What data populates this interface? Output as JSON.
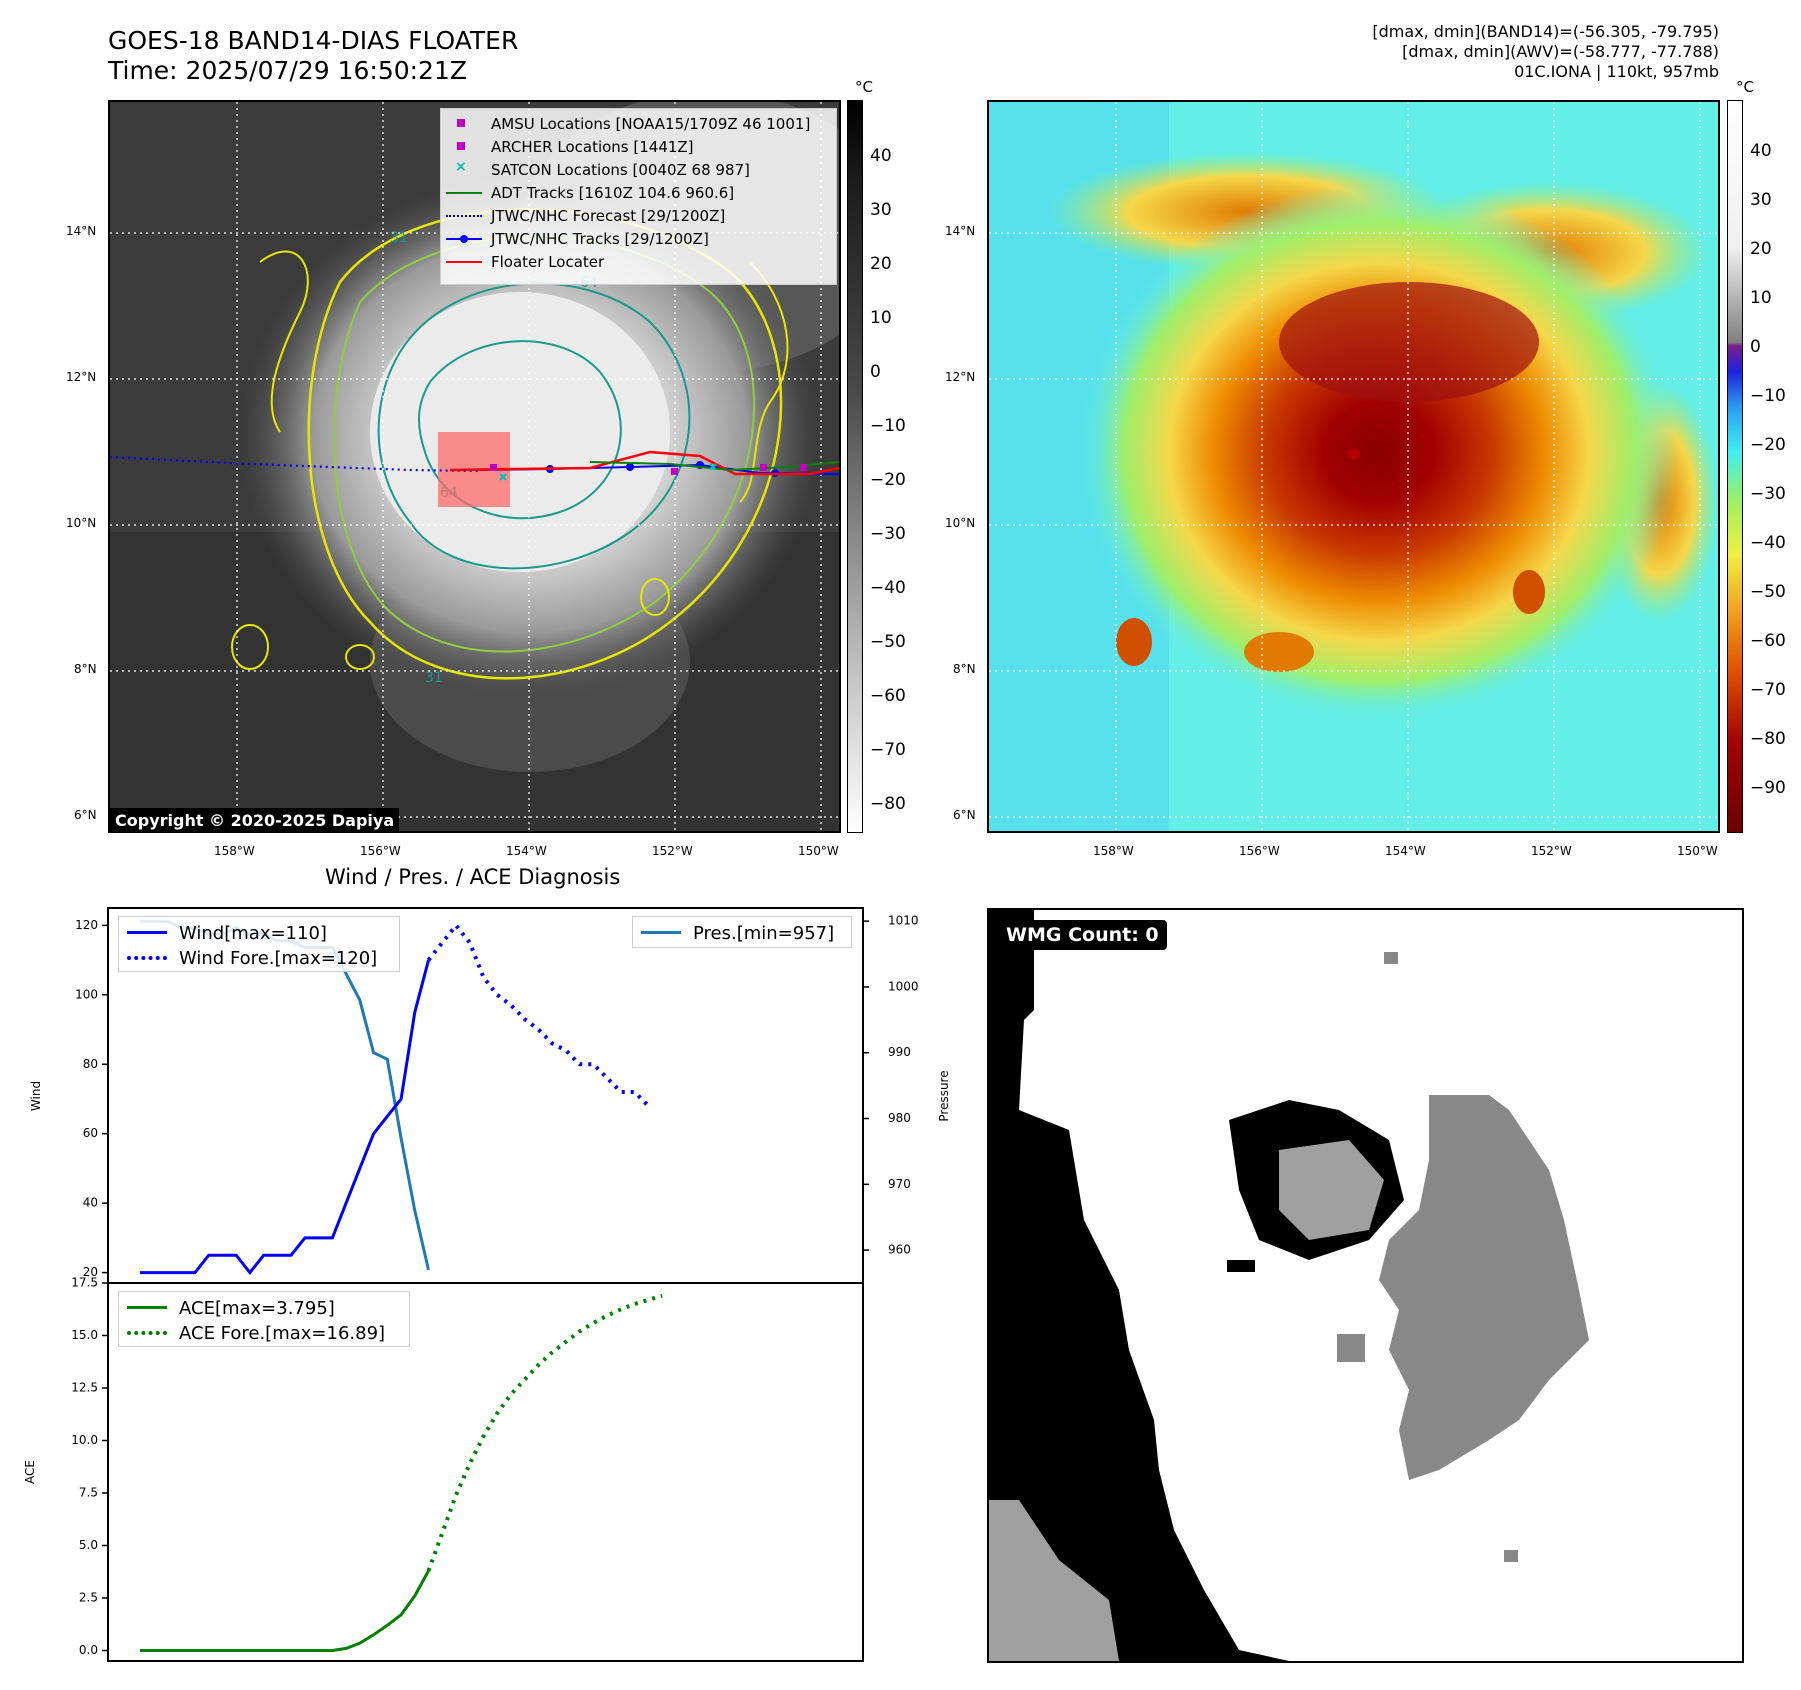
{
  "header": {
    "title_line1": "GOES-18 BAND14-DIAS FLOATER",
    "title_line2": "Time: 2025/07/29 16:50:21Z",
    "info_line1": "[dmax, dmin](BAND14)=(-56.305, -79.795)",
    "info_line2": "[dmax, dmin](AWV)=(-58.777, -77.788)",
    "info_line3": "01C.IONA | 110kt, 957mb"
  },
  "map_left": {
    "colorbar_unit": "°C",
    "colorbar_ticks": [
      "40",
      "30",
      "20",
      "10",
      "0",
      "−10",
      "−20",
      "−30",
      "−40",
      "−50",
      "−60",
      "−70",
      "−80"
    ],
    "lat_labels": [
      "14°N",
      "12°N",
      "10°N",
      "8°N",
      "6°N"
    ],
    "lon_labels": [
      "158°W",
      "156°W",
      "154°W",
      "152°W",
      "150°W"
    ],
    "copyright": "Copyright © 2020-2025 Dapiya",
    "contour_labels": [
      "31",
      "64",
      "64",
      "31"
    ],
    "legend": [
      {
        "label": "AMSU Locations [NOAA15/1709Z 46 1001]",
        "color": "#bf00bf",
        "marker": "square"
      },
      {
        "label": "ARCHER Locations [1441Z]",
        "color": "#bf00bf",
        "marker": "square"
      },
      {
        "label": "SATCON Locations [0040Z 68 987]",
        "color": "#00bfbf",
        "marker": "x"
      },
      {
        "label": "ADT Tracks [1610Z 104.6 960.6]",
        "color": "#008000",
        "marker": "line"
      },
      {
        "label": "JTWC/NHC Forecast [29/1200Z]",
        "color": "#0000ff",
        "marker": "dotted"
      },
      {
        "label": "JTWC/NHC Tracks [29/1200Z]",
        "color": "#0000ff",
        "marker": "line-dot"
      },
      {
        "label": "Floater Locater",
        "color": "#ff0000",
        "marker": "line"
      }
    ]
  },
  "map_right": {
    "colorbar_unit": "°C",
    "colorbar_ticks": [
      "40",
      "30",
      "20",
      "10",
      "0",
      "−10",
      "−20",
      "−30",
      "−40",
      "−50",
      "−60",
      "−70",
      "−80",
      "−90"
    ],
    "lat_labels": [
      "14°N",
      "12°N",
      "10°N",
      "8°N",
      "6°N"
    ],
    "lon_labels": [
      "158°W",
      "156°W",
      "154°W",
      "152°W",
      "150°W"
    ]
  },
  "diag": {
    "title": "Wind / Pres. / ACE Diagnosis",
    "wind_ylabel": "Wind",
    "pres_ylabel": "Pressure",
    "ace_ylabel": "ACE",
    "wind_ticks": [
      "120",
      "100",
      "80",
      "60",
      "40",
      "20"
    ],
    "pres_ticks": [
      "1010",
      "1000",
      "990",
      "980",
      "970",
      "960"
    ],
    "ace_ticks": [
      "17.5",
      "15.0",
      "12.5",
      "10.0",
      "7.5",
      "5.0",
      "2.5",
      "0.0"
    ],
    "legend_wind": "Wind[max=110]",
    "legend_wind_fore": "Wind Fore.[max=120]",
    "legend_pres": "Pres.[min=957]",
    "legend_ace": "ACE[max=3.795]",
    "legend_ace_fore": "ACE Fore.[max=16.89]"
  },
  "wmg": {
    "label": "WMG Count: 0"
  },
  "chart_data": [
    {
      "type": "line",
      "title": "Wind / Pres. / ACE Diagnosis",
      "ylabel": "Wind",
      "ylim": [
        17,
        125
      ],
      "x": [
        0,
        1,
        2,
        3,
        4,
        5,
        6,
        7,
        8,
        9,
        10,
        11,
        12,
        13,
        14,
        15,
        16,
        17,
        18,
        19,
        20,
        21,
        22,
        23,
        24,
        25,
        26,
        27,
        28,
        29,
        30,
        31,
        32,
        33,
        34,
        35,
        36,
        37,
        38,
        39,
        40,
        41,
        42,
        43,
        44,
        45,
        46,
        47,
        48,
        49,
        50
      ],
      "series": [
        {
          "name": "Wind[max=110]",
          "values": [
            20,
            20,
            20,
            20,
            20,
            25,
            25,
            25,
            20,
            25,
            25,
            25,
            30,
            30,
            30,
            40,
            50,
            60,
            65,
            70,
            95,
            110,
            null,
            null,
            null,
            null,
            null,
            null,
            null,
            null,
            null,
            null,
            null,
            null,
            null,
            null,
            null,
            null,
            null,
            null,
            null,
            null,
            null,
            null,
            null,
            null,
            null,
            null,
            null,
            null,
            null
          ]
        },
        {
          "name": "Wind Fore.[max=120]",
          "values": [
            null,
            null,
            null,
            null,
            null,
            null,
            null,
            null,
            null,
            null,
            null,
            null,
            null,
            null,
            null,
            null,
            null,
            null,
            null,
            null,
            null,
            110,
            115,
            120,
            115,
            105,
            100,
            97,
            93,
            90,
            86,
            84,
            80,
            80,
            76,
            72,
            72,
            68,
            null,
            null,
            null,
            null,
            null,
            null,
            null,
            null,
            null,
            null,
            null,
            null,
            null
          ]
        }
      ]
    },
    {
      "type": "line",
      "ylabel": "Pressure",
      "ylim": [
        955,
        1012
      ],
      "series": [
        {
          "name": "Pres.[min=957]",
          "values": [
            1010,
            1010,
            1010,
            1009,
            1009,
            1008,
            1008,
            1009,
            1008,
            1008,
            1007,
            1007,
            1006,
            1006,
            1006,
            1002,
            998,
            990,
            989,
            977,
            966,
            957
          ]
        }
      ]
    },
    {
      "type": "line",
      "ylabel": "ACE",
      "ylim": [
        -0.5,
        17.5
      ],
      "series": [
        {
          "name": "ACE[max=3.795]",
          "values": [
            0,
            0,
            0,
            0,
            0,
            0,
            0,
            0,
            0,
            0,
            0,
            0,
            0,
            0,
            0,
            0.1,
            0.35,
            0.75,
            1.2,
            1.7,
            2.6,
            3.795
          ]
        },
        {
          "name": "ACE Fore.[max=16.89]",
          "values": [
            null,
            null,
            null,
            null,
            null,
            null,
            null,
            null,
            null,
            null,
            null,
            null,
            null,
            null,
            null,
            null,
            null,
            null,
            null,
            null,
            null,
            3.795,
            5.6,
            7.4,
            8.9,
            10.2,
            11.3,
            12.2,
            12.9,
            13.6,
            14.2,
            14.7,
            15.2,
            15.6,
            15.95,
            16.25,
            16.5,
            16.7,
            16.89
          ]
        }
      ]
    }
  ]
}
